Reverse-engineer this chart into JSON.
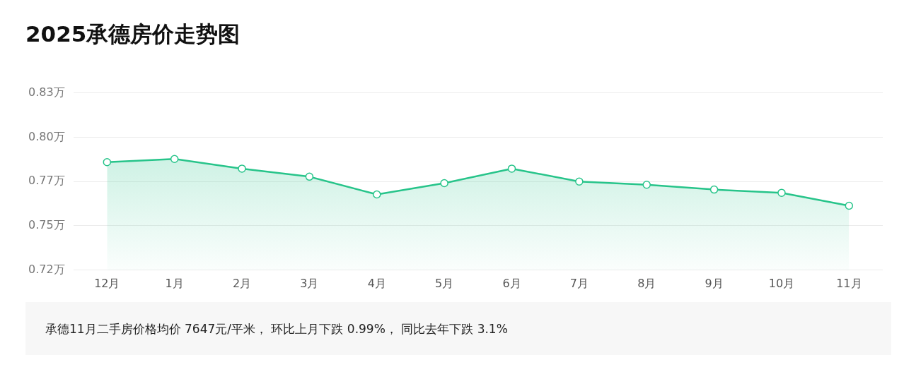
{
  "chart_data": {
    "type": "area",
    "title": "2025承德房价走势图",
    "categories": [
      "12月",
      "1月",
      "2月",
      "3月",
      "4月",
      "5月",
      "6月",
      "7月",
      "8月",
      "9月",
      "10月",
      "11月"
    ],
    "series": [
      {
        "color": "#27c48a",
        "values": [
          0.787,
          0.789,
          0.783,
          0.778,
          0.767,
          0.774,
          0.783,
          0.775,
          0.773,
          0.77,
          0.768,
          0.76
        ]
      }
    ],
    "ylim": [
      0.72,
      0.83
    ],
    "yticks": [
      {
        "value": 0.72,
        "label": "0.72万"
      },
      {
        "value": 0.7475,
        "label": "0.75万"
      },
      {
        "value": 0.775,
        "label": "0.77万"
      },
      {
        "value": 0.8025,
        "label": "0.80万"
      },
      {
        "value": 0.83,
        "label": "0.83万"
      }
    ],
    "grid": "y",
    "legend": false,
    "marker": "circle",
    "annotations": [
      "承德11月二手房价格均价 7647元/平米， 环比上月下跌 0.99%， 同比去年下跌 3.1%"
    ]
  }
}
